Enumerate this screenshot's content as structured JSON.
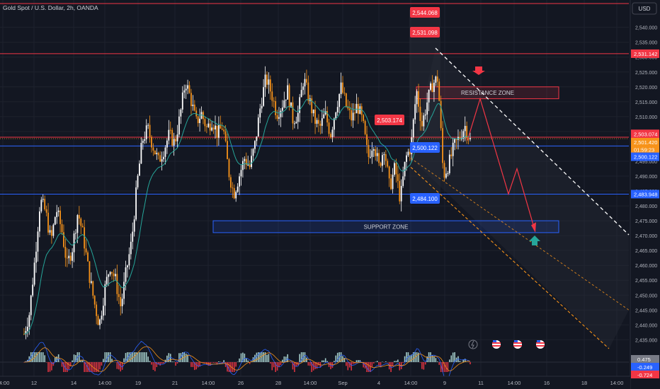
{
  "header": {
    "symbol_title": "Gold Spot / U.S. Dollar, 2h, OANDA"
  },
  "currency_button": "USD",
  "colors": {
    "background": "#131722",
    "bull": "#ffffff",
    "bear": "#f7931a",
    "resistance_line": "#f23645",
    "support_line": "#2962ff",
    "ema": "#26a69a",
    "channel_upper": "#ffffff",
    "channel_lower": "#f7931a",
    "projection": "#f23645",
    "up_arrow": "#26a69a"
  },
  "chart_data": {
    "type": "candlestick",
    "title": "Gold Spot / U.S. Dollar, 2h, OANDA",
    "y_axis": {
      "range": [
        2432,
        2548
      ],
      "ticks": [
        2435,
        2440,
        2445,
        2450,
        2455,
        2460,
        2465,
        2470,
        2475,
        2480,
        2485,
        2490,
        2495,
        2500,
        2505,
        2510,
        2515,
        2520,
        2525,
        2530,
        2535,
        2540
      ]
    },
    "x_axis": {
      "labels": [
        "14:00",
        "12",
        "14",
        "14:00",
        "19",
        "21",
        "14:00",
        "26",
        "28",
        "14:00",
        "Sep",
        "4",
        "14:00",
        "9",
        "11",
        "14:00",
        "16",
        "18",
        "14:00"
      ]
    },
    "price_path": [
      2437,
      2444,
      2462,
      2482,
      2478,
      2468,
      2479,
      2472,
      2460,
      2466,
      2478,
      2470,
      2458,
      2448,
      2440,
      2452,
      2460,
      2455,
      2446,
      2458,
      2468,
      2487,
      2502,
      2506,
      2500,
      2495,
      2499,
      2504,
      2501,
      2510,
      2522,
      2516,
      2508,
      2511,
      2506,
      2509,
      2504,
      2507,
      2492,
      2484,
      2490,
      2496,
      2493,
      2501,
      2514,
      2523,
      2518,
      2511,
      2514,
      2519,
      2509,
      2511,
      2523,
      2516,
      2509,
      2506,
      2511,
      2504,
      2513,
      2520,
      2513,
      2509,
      2514,
      2508,
      2496,
      2502,
      2493,
      2500,
      2486,
      2493,
      2482,
      2496,
      2500,
      2519,
      2507,
      2515,
      2521,
      2523,
      2490,
      2494,
      2500,
      2503,
      2507,
      2502
    ],
    "horizontal_levels": [
      {
        "price": 2548.0,
        "color": "#f23645"
      },
      {
        "price": 2531.142,
        "color": "#f23645"
      },
      {
        "price": 2503.074,
        "color": "#f23645"
      },
      {
        "price": 2500.122,
        "color": "#2962ff"
      },
      {
        "price": 2483.948,
        "color": "#2962ff"
      }
    ],
    "zones": [
      {
        "label": "RESISTANCE ZONE",
        "price_top": 2520,
        "price_bottom": 2516,
        "x_from": 588,
        "x_to": 789,
        "color": "#f23645"
      },
      {
        "label": "SUPPORT ZONE",
        "price_top": 2475,
        "price_bottom": 2471,
        "x_from": 301,
        "x_to": 789,
        "color": "#2962ff"
      }
    ],
    "chart_labels": [
      {
        "text": "2,544.068",
        "price": 2544.068
      },
      {
        "text": "2,531.098",
        "price": 2531.098
      },
      {
        "text": "2,503.174",
        "price": 2503.174
      },
      {
        "text": "2,500.122",
        "price": 2500.122
      },
      {
        "text": "2,484.100",
        "price": 2484.1
      }
    ],
    "axis_price_labels": [
      {
        "text": "2,531.142",
        "price": 2531.142,
        "color": "#f23645"
      },
      {
        "text": "2,503.074",
        "price": 2504.2,
        "color": "#f23645"
      },
      {
        "text": "2,501.420",
        "price": 2501.42,
        "color": "#f7931a"
      },
      {
        "text": "01:59:23",
        "price": 2498.9,
        "color": "#f7931a"
      },
      {
        "text": "2,500.122",
        "price": 2496.5,
        "color": "#2962ff"
      },
      {
        "text": "2,483.948",
        "price": 2483.948,
        "color": "#2962ff"
      }
    ],
    "indicator_labels": [
      {
        "text": "0.475",
        "color": "#787b86"
      },
      {
        "text": "-0.249",
        "color": "#2962ff"
      },
      {
        "text": "-0.724",
        "color": "#f23645"
      }
    ]
  }
}
